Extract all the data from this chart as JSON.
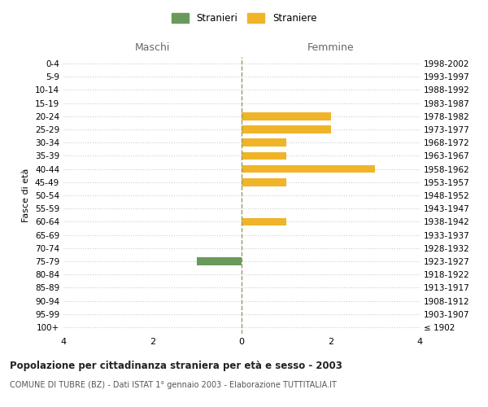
{
  "age_groups": [
    "100+",
    "95-99",
    "90-94",
    "85-89",
    "80-84",
    "75-79",
    "70-74",
    "65-69",
    "60-64",
    "55-59",
    "50-54",
    "45-49",
    "40-44",
    "35-39",
    "30-34",
    "25-29",
    "20-24",
    "15-19",
    "10-14",
    "5-9",
    "0-4"
  ],
  "birth_years": [
    "≤ 1902",
    "1903-1907",
    "1908-1912",
    "1913-1917",
    "1918-1922",
    "1923-1927",
    "1928-1932",
    "1933-1937",
    "1938-1942",
    "1943-1947",
    "1948-1952",
    "1953-1957",
    "1958-1962",
    "1963-1967",
    "1968-1972",
    "1973-1977",
    "1978-1982",
    "1983-1987",
    "1988-1992",
    "1993-1997",
    "1998-2002"
  ],
  "maschi": [
    0,
    0,
    0,
    0,
    0,
    1,
    0,
    0,
    0,
    0,
    0,
    0,
    0,
    0,
    0,
    0,
    0,
    0,
    0,
    0,
    0
  ],
  "femmine": [
    0,
    0,
    0,
    0,
    0,
    0,
    0,
    0,
    1,
    0,
    0,
    1,
    3,
    1,
    1,
    2,
    2,
    0,
    0,
    0,
    0
  ],
  "male_color": "#6a9a5b",
  "female_color": "#f0b429",
  "background_color": "#ffffff",
  "grid_color": "#cccccc",
  "center_line_color": "#999966",
  "xlim": 4,
  "xlabel_left": "Maschi",
  "xlabel_right": "Femmine",
  "ylabel_left": "Fasce di età",
  "title": "Popolazione per cittadinanza straniera per età e sesso - 2003",
  "subtitle": "COMUNE DI TUBRE (BZ) - Dati ISTAT 1° gennaio 2003 - Elaborazione TUTTITALIA.IT",
  "legend_male": "Stranieri",
  "legend_female": "Straniere",
  "fig_width": 6.0,
  "fig_height": 5.0,
  "dpi": 100
}
